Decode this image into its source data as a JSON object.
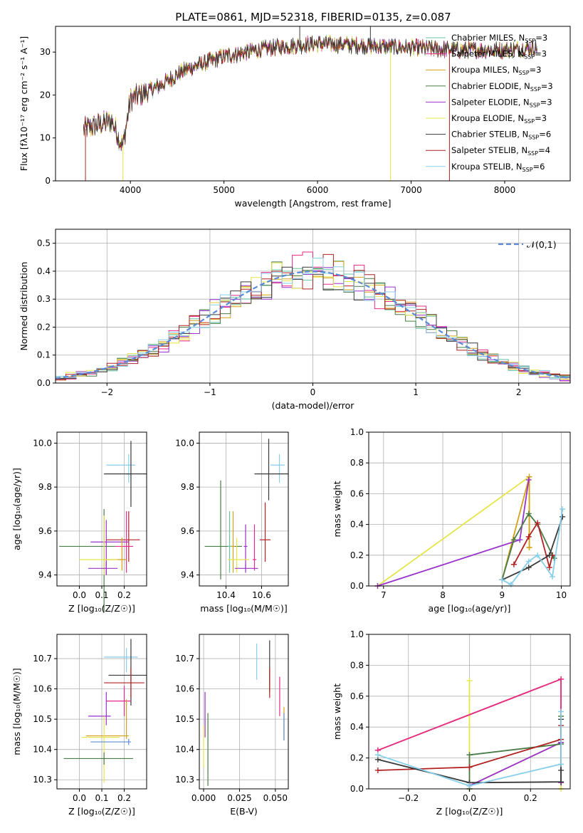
{
  "figure": {
    "title": "PLATE=0861, MJD=52318, FIBERID=0135, z=0.087"
  },
  "colors": {
    "c0": "#66c2a5",
    "c1": "#e7298a",
    "c2": "#d4a017",
    "c3": "#4a7c47",
    "c4": "#9932cc",
    "c5": "#e5e54a",
    "c6": "#3a3a3a",
    "c7": "#b22222",
    "c8": "#87ceeb",
    "normal_curve": "#5b8bd6"
  },
  "chart_data": [
    {
      "id": "spectrum",
      "type": "line",
      "title": "PLATE=0861, MJD=52318, FIBERID=0135, z=0.087",
      "xlabel": "wavelength [Angstrom, rest frame]",
      "ylabel": "Flux [fλ10⁻¹⁷ erg cm⁻² s⁻¹ A⁻¹]",
      "xlim": [
        3200,
        8700
      ],
      "ylim": [
        0,
        36
      ],
      "xticks": [
        4000,
        5000,
        6000,
        7000,
        8000
      ],
      "yticks": [
        0,
        10,
        20,
        30
      ],
      "grid": false,
      "legend_position": "top-right",
      "legend": [
        "Chabrier MILES, N_SSP=3",
        "Salpeter MILES, N_SSP=3",
        "Kroupa MILES, N_SSP=3",
        "Chabrier ELODIE, N_SSP=3",
        "Salpeter ELODIE, N_SSP=3",
        "Kroupa ELODIE, N_SSP=3",
        "Chabrier STELIB, N_SSP=6",
        "Salpeter STELIB, N_SSP=4",
        "Kroupa STELIB, N_SSP=6"
      ],
      "continuum": {
        "x": [
          3500,
          3800,
          3920,
          4000,
          4300,
          4600,
          5000,
          5500,
          6000,
          6500,
          7000,
          7500,
          8000,
          8350
        ],
        "y": [
          12,
          14,
          8,
          19,
          22,
          26,
          29,
          31,
          32,
          31.5,
          31,
          30.5,
          30.5,
          31
        ]
      },
      "spikes": [
        {
          "x": 3520,
          "y": 0,
          "series": "Salpeter STELIB"
        },
        {
          "x": 3920,
          "y": 0,
          "series": "Kroupa ELODIE"
        },
        {
          "x": 5810,
          "y": 38,
          "series": "Chabrier STELIB"
        },
        {
          "x": 6565,
          "y": 38,
          "series": "Chabrier STELIB"
        },
        {
          "x": 6780,
          "y": 0,
          "series": "Kroupa ELODIE"
        },
        {
          "x": 7410,
          "y": 0,
          "series": "Salpeter STELIB"
        }
      ]
    },
    {
      "id": "residuals",
      "type": "line",
      "xlabel": "(data-model)/error",
      "ylabel": "Normed distribution",
      "xlim": [
        -2.5,
        2.5
      ],
      "ylim": [
        0,
        0.55
      ],
      "xticks": [
        -2,
        -1,
        0,
        1,
        2
      ],
      "yticks": [
        0.0,
        0.1,
        0.2,
        0.3,
        0.4,
        0.5
      ],
      "grid": true,
      "legend": [
        "𝒩(0,1)"
      ],
      "legend_position": "top-right",
      "bin_width": 0.1,
      "bin_start": -2.5
    },
    {
      "id": "age-vs-Z",
      "type": "scatter",
      "xlabel": "Z [log₁₀(Z/Z☉)]",
      "ylabel": "age  [log₁₀(age/yr)]",
      "xlim": [
        -0.1,
        0.3
      ],
      "ylim": [
        9.35,
        10.05
      ],
      "xticks": [
        0.0,
        0.1,
        0.2
      ],
      "yticks": [
        9.4,
        9.6,
        9.8,
        10.0
      ],
      "grid": true,
      "points": [
        {
          "x": 0.22,
          "y": 9.9,
          "xerr": [
            0.1,
            0.03
          ],
          "yerr": [
            0.08,
            0.05
          ],
          "color": "c8"
        },
        {
          "x": 0.23,
          "y": 9.86,
          "xerr": [
            0.12,
            0.07
          ],
          "yerr": [
            0.15,
            0.15
          ],
          "color": "c6"
        },
        {
          "x": 0.11,
          "y": 9.53,
          "xerr": [
            0.2,
            0.05
          ],
          "yerr": [
            0.3,
            0.17
          ],
          "color": "c3"
        },
        {
          "x": 0.12,
          "y": 9.55,
          "xerr": [
            0.07,
            0.1
          ],
          "yerr": [
            0.15,
            0.1
          ],
          "color": "c4"
        },
        {
          "x": 0.22,
          "y": 9.56,
          "xerr": [
            0.1,
            0.05
          ],
          "yerr": [
            0.1,
            0.13
          ],
          "color": "c7"
        },
        {
          "x": 0.21,
          "y": 9.53,
          "xerr": [
            0.05,
            0.03
          ],
          "yerr": [
            0.12,
            0.16
          ],
          "color": "c1"
        },
        {
          "x": 0.19,
          "y": 9.47,
          "xerr": [
            0.08,
            0.02
          ],
          "yerr": [
            0.05,
            0.1
          ],
          "color": "c2"
        },
        {
          "x": 0.11,
          "y": 9.47,
          "xerr": [
            0.11,
            0.06
          ],
          "yerr": [
            0.07,
            0.2
          ],
          "color": "c5"
        },
        {
          "x": 0.12,
          "y": 9.43,
          "xerr": [
            0.08,
            0.05
          ],
          "yerr": [
            0.03,
            0.03
          ],
          "color": "c4"
        }
      ]
    },
    {
      "id": "age-vs-mass",
      "type": "scatter",
      "xlabel": "mass [log₁₀(M/M☉)]",
      "ylabel": "",
      "xlim": [
        10.25,
        10.75
      ],
      "ylim": [
        9.35,
        10.05
      ],
      "xticks": [
        10.4,
        10.6
      ],
      "yticks": [
        9.4,
        9.6,
        9.8,
        10.0
      ],
      "grid": true,
      "points": [
        {
          "x": 10.7,
          "y": 9.9,
          "xerr": [
            0.05,
            0.03
          ],
          "yerr": [
            0.08,
            0.05
          ],
          "color": "c8"
        },
        {
          "x": 10.64,
          "y": 9.86,
          "xerr": [
            0.08,
            0.11
          ],
          "yerr": [
            0.12,
            0.16
          ],
          "color": "c6"
        },
        {
          "x": 10.37,
          "y": 9.53,
          "xerr": [
            0.09,
            0.12
          ],
          "yerr": [
            0.15,
            0.3
          ],
          "color": "c3"
        },
        {
          "x": 10.44,
          "y": 9.53,
          "xerr": [
            0.01,
            0.01
          ],
          "yerr": [
            0.12,
            0.16
          ],
          "color": "c2"
        },
        {
          "x": 10.42,
          "y": 9.53,
          "xerr": [
            0.01,
            0.01
          ],
          "yerr": [
            0.12,
            0.16
          ],
          "color": "c0"
        },
        {
          "x": 10.51,
          "y": 9.53,
          "xerr": [
            0.01,
            0.01
          ],
          "yerr": [
            0.1,
            0.1
          ],
          "color": "c4"
        },
        {
          "x": 10.56,
          "y": 9.47,
          "xerr": [
            0.01,
            0.01
          ],
          "yerr": [
            0.05,
            0.16
          ],
          "color": "c1"
        },
        {
          "x": 10.62,
          "y": 9.56,
          "xerr": [
            0.03,
            0.03
          ],
          "yerr": [
            0.1,
            0.17
          ],
          "color": "c7"
        },
        {
          "x": 10.46,
          "y": 9.47,
          "xerr": [
            0.05,
            0.07
          ],
          "yerr": [
            0.06,
            0.1
          ],
          "color": "c5"
        },
        {
          "x": 10.51,
          "y": 9.43,
          "xerr": [
            0.06,
            0.07
          ],
          "yerr": [
            0.02,
            0.02
          ],
          "color": "c4"
        }
      ]
    },
    {
      "id": "massweight-vs-age",
      "type": "line",
      "xlabel": "age  [log₁₀(age/yr)]",
      "ylabel": "mass weight",
      "xlim": [
        6.75,
        10.15
      ],
      "ylim": [
        0,
        1.0
      ],
      "xticks": [
        7,
        8,
        9,
        10
      ],
      "yticks": [
        0.0,
        0.2,
        0.4,
        0.6,
        0.8,
        1.0
      ],
      "grid": true,
      "series": [
        {
          "color": "c5",
          "x": [
            6.9,
            9.46,
            9.46
          ],
          "y": [
            0.0,
            0.71,
            0.25
          ]
        },
        {
          "color": "c2",
          "x": [
            9.0,
            9.46,
            9.46
          ],
          "y": [
            0.04,
            0.71,
            0.25
          ]
        },
        {
          "color": "c4",
          "x": [
            6.9,
            9.3,
            9.45
          ],
          "y": [
            0.0,
            0.3,
            0.69
          ]
        },
        {
          "color": "c3",
          "x": [
            9.0,
            9.2,
            9.45,
            9.6,
            9.85,
            9.88
          ],
          "y": [
            0.04,
            0.3,
            0.47,
            0.4,
            0.2,
            0.18
          ]
        },
        {
          "color": "c7",
          "x": [
            9.2,
            9.45,
            9.6,
            9.8,
            9.85
          ],
          "y": [
            0.14,
            0.32,
            0.41,
            0.12,
            0.2
          ]
        },
        {
          "color": "c6",
          "x": [
            9.0,
            9.45,
            9.8,
            10.02
          ],
          "y": [
            0.04,
            0.12,
            0.2,
            0.45
          ]
        },
        {
          "color": "c8",
          "x": [
            9.0,
            9.15,
            9.45,
            9.6,
            9.85,
            10.02
          ],
          "y": [
            0.04,
            0.01,
            0.16,
            0.2,
            0.06,
            0.5
          ]
        }
      ]
    },
    {
      "id": "mass-vs-Z",
      "type": "scatter",
      "xlabel": "Z [log₁₀(Z/Z☉)]",
      "ylabel": "mass [log₁₀(M/M☉)]",
      "xlim": [
        -0.1,
        0.3
      ],
      "ylim": [
        10.27,
        10.78
      ],
      "xticks": [
        0.0,
        0.1,
        0.2
      ],
      "yticks": [
        10.3,
        10.4,
        10.5,
        10.6,
        10.7
      ],
      "grid": true,
      "points": [
        {
          "x": 0.21,
          "y": 10.705,
          "xerr": [
            0.1,
            0.05
          ],
          "yerr": [
            0.05,
            0.03
          ],
          "color": "c8"
        },
        {
          "x": 0.23,
          "y": 10.645,
          "xerr": [
            0.1,
            0.07
          ],
          "yerr": [
            0.1,
            0.12
          ],
          "color": "c6"
        },
        {
          "x": 0.23,
          "y": 10.62,
          "xerr": [
            0.12,
            0.06
          ],
          "yerr": [
            0.05,
            0.05
          ],
          "color": "c7"
        },
        {
          "x": 0.2,
          "y": 10.56,
          "xerr": [
            0.08,
            0.03
          ],
          "yerr": [
            0.05,
            0.05
          ],
          "color": "c1"
        },
        {
          "x": 0.12,
          "y": 10.51,
          "xerr": [
            0.08,
            0.02
          ],
          "yerr": [
            0.03,
            0.08
          ],
          "color": "c4"
        },
        {
          "x": 0.21,
          "y": 10.445,
          "xerr": [
            0.18,
            0.01
          ],
          "yerr": [
            0.01,
            0.12
          ],
          "color": "c2"
        },
        {
          "x": 0.11,
          "y": 10.44,
          "xerr": [
            0.1,
            0.07
          ],
          "yerr": [
            0.15,
            0.07
          ],
          "color": "c5"
        },
        {
          "x": 0.22,
          "y": 10.425,
          "xerr": [
            0.17,
            0.01
          ],
          "yerr": [
            0.01,
            0.01
          ],
          "color": "normal_curve"
        },
        {
          "x": 0.11,
          "y": 10.37,
          "xerr": [
            0.18,
            0.13
          ],
          "yerr": [
            0.02,
            0.02
          ],
          "color": "c3"
        }
      ]
    },
    {
      "id": "mass-vs-ebv",
      "type": "scatter",
      "xlabel": "E(B-V)",
      "ylabel": "",
      "xlim": [
        -0.003,
        0.059
      ],
      "ylim": [
        10.27,
        10.78
      ],
      "xticks": [
        0.0,
        0.025,
        0.05
      ],
      "yticks": [
        10.3,
        10.4,
        10.5,
        10.6,
        10.7
      ],
      "grid": true,
      "points": [
        {
          "x": 0.037,
          "y": 10.69,
          "xerr": [
            0,
            0
          ],
          "yerr": [
            0.06,
            0.06
          ],
          "color": "c8"
        },
        {
          "x": 0.046,
          "y": 10.67,
          "xerr": [
            0,
            0
          ],
          "yerr": [
            0.08,
            0.09
          ],
          "color": "c6"
        },
        {
          "x": 0.046,
          "y": 10.62,
          "xerr": [
            0,
            0
          ],
          "yerr": [
            0.05,
            0.05
          ],
          "color": "c7"
        },
        {
          "x": 0.053,
          "y": 10.57,
          "xerr": [
            0,
            0
          ],
          "yerr": [
            0.06,
            0.07
          ],
          "color": "c1"
        },
        {
          "x": 0.056,
          "y": 10.49,
          "xerr": [
            0,
            0
          ],
          "yerr": [
            0.06,
            0.05
          ],
          "color": "c2"
        },
        {
          "x": 0.056,
          "y": 10.47,
          "xerr": [
            0,
            0
          ],
          "yerr": [
            0.04,
            0.05
          ],
          "color": "normal_curve"
        },
        {
          "x": 0.001,
          "y": 10.52,
          "xerr": [
            0,
            0
          ],
          "yerr": [
            0.08,
            0.07
          ],
          "color": "c4"
        },
        {
          "x": 0.0,
          "y": 10.41,
          "xerr": [
            0,
            0
          ],
          "yerr": [
            0.07,
            0.07
          ],
          "color": "c5"
        },
        {
          "x": 0.003,
          "y": 10.4,
          "xerr": [
            0,
            0
          ],
          "yerr": [
            0.12,
            0.12
          ],
          "color": "c3"
        }
      ]
    },
    {
      "id": "massweight-vs-Z",
      "type": "line",
      "xlabel": "Z [log₁₀(Z/Z☉)]",
      "ylabel": "mass weight",
      "xlim": [
        -0.33,
        0.33
      ],
      "ylim": [
        0,
        1.0
      ],
      "xticks": [
        -0.2,
        0.0,
        0.2
      ],
      "yticks": [
        0.0,
        0.2,
        0.4,
        0.6,
        0.8,
        1.0
      ],
      "grid": true,
      "series": [
        {
          "color": "c5",
          "x": [
            0.0,
            0.0,
            0.0,
            0.3,
            0.3
          ],
          "y": [
            0.7,
            0.0,
            0.02,
            0.3,
            0.0
          ]
        },
        {
          "color": "c2",
          "x": [
            -0.3,
            0.3,
            0.3
          ],
          "y": [
            0.25,
            0.71,
            0.32
          ]
        },
        {
          "color": "c1",
          "x": [
            -0.3,
            0.3,
            0.3
          ],
          "y": [
            0.25,
            0.71,
            0.3
          ]
        },
        {
          "color": "c4",
          "x": [
            0.0,
            0.3,
            0.3
          ],
          "y": [
            0.02,
            0.3,
            0.04
          ]
        },
        {
          "color": "c3",
          "x": [
            0.0,
            0.0,
            0.3,
            0.3
          ],
          "y": [
            0.0,
            0.22,
            0.29,
            0.47
          ]
        },
        {
          "color": "c7",
          "x": [
            -0.3,
            0.0,
            0.3,
            0.3
          ],
          "y": [
            0.12,
            0.14,
            0.32,
            0.41
          ]
        },
        {
          "color": "c6",
          "x": [
            -0.3,
            0.0,
            0.3,
            0.3,
            0.3
          ],
          "y": [
            0.19,
            0.04,
            0.045,
            0.12,
            0.45
          ]
        },
        {
          "color": "c8",
          "x": [
            -0.3,
            0.0,
            0.3,
            0.3
          ],
          "y": [
            0.22,
            0.02,
            0.16,
            0.5
          ]
        }
      ]
    }
  ]
}
